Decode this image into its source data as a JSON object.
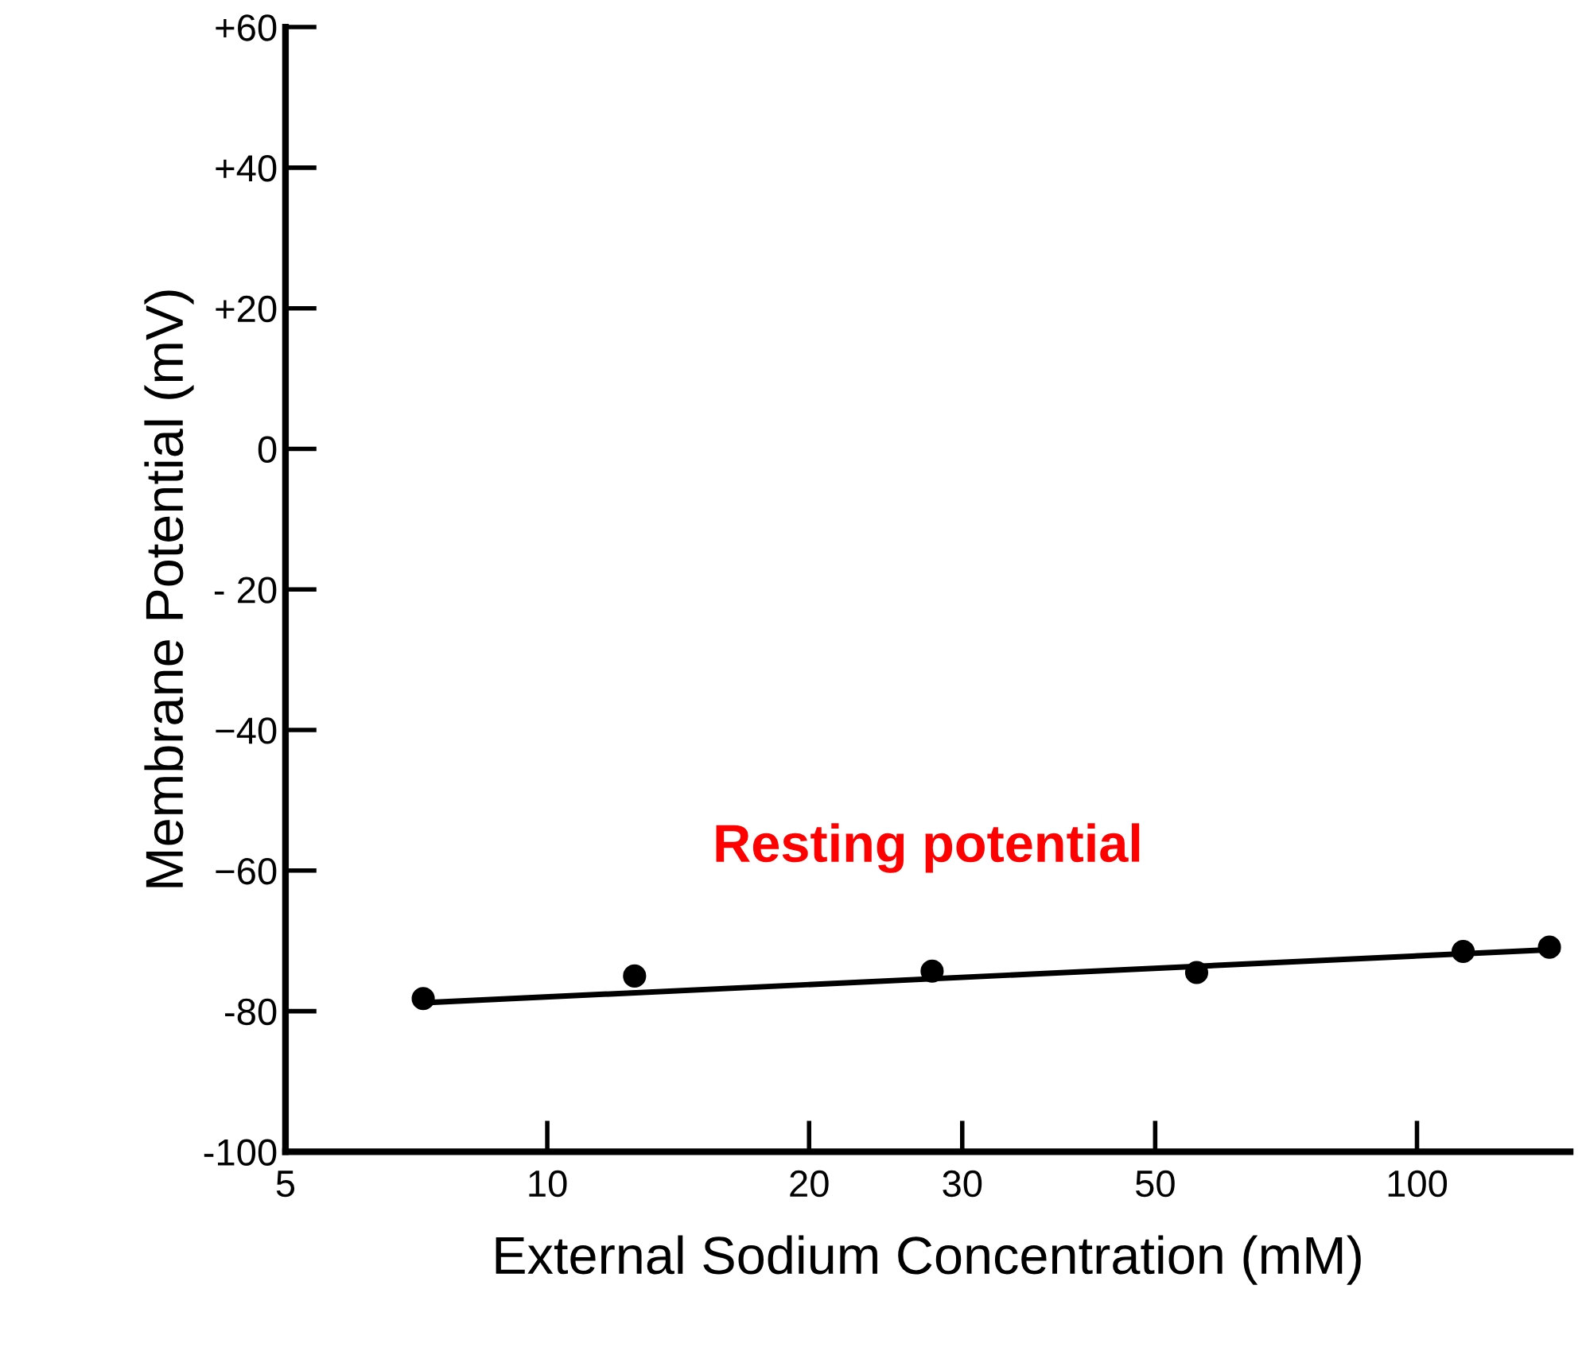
{
  "chart_data": {
    "type": "scatter",
    "xlabel": "External Sodium Concentration (mM)",
    "ylabel": "Membrane Potential (mV)",
    "log": "x",
    "marker": "circle",
    "grid": false,
    "xlim": [
      5,
      150
    ],
    "ylim": [
      -100,
      60
    ],
    "xticks": [
      5,
      10,
      20,
      30,
      50,
      100
    ],
    "yticks": [
      {
        "value": -100,
        "label": "-100"
      },
      {
        "value": -80,
        "label": "-80"
      },
      {
        "value": -60,
        "label": "−60"
      },
      {
        "value": -40,
        "label": "−40"
      },
      {
        "value": -20,
        "label": "- 20"
      },
      0,
      {
        "value": 20,
        "label": "+20"
      },
      {
        "value": 40,
        "label": "+40"
      },
      {
        "value": 60,
        "label": "+60"
      }
    ],
    "series": [
      {
        "color": "#000000",
        "x": [
          7.2,
          12.6,
          27.7,
          55.8,
          113,
          142
        ],
        "values": [
          -78.2,
          -75,
          -74.3,
          -74.5,
          -71.5,
          -70.9
        ]
      },
      {
        "type": "line",
        "color": "#000000",
        "x": [
          7.2,
          145
        ],
        "values": [
          -78.8,
          -71.2
        ],
        "marker": "none"
      }
    ],
    "annotations": [
      "Resting potential"
    ]
  }
}
